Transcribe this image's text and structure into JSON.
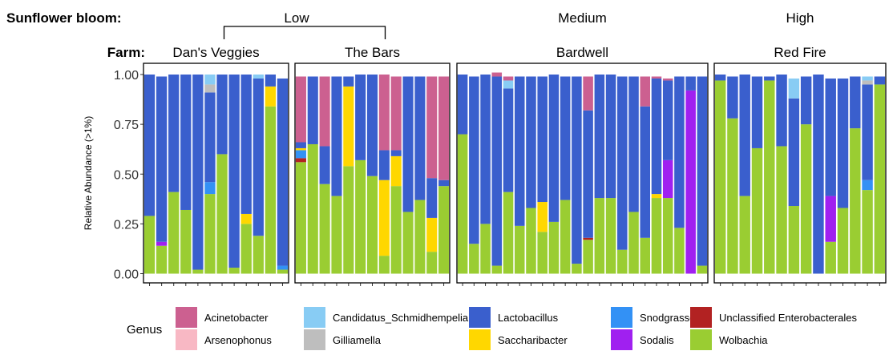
{
  "labels": {
    "bloom_label": "Sunflower bloom:",
    "farm_label": "Farm:",
    "ylabel": "Relative Abundance (>1%)",
    "legend_title": "Genus"
  },
  "bloom_groups": [
    {
      "name": "Low",
      "panels": [
        0,
        1
      ]
    },
    {
      "name": "Medium",
      "panels": [
        2
      ]
    },
    {
      "name": "High",
      "panels": [
        3
      ]
    }
  ],
  "genera": [
    {
      "name": "Acinetobacter",
      "color": "#CC6090"
    },
    {
      "name": "Arsenophonus",
      "color": "#F8B8C4"
    },
    {
      "name": "Candidatus_Schmidhempelia",
      "color": "#88CCF4"
    },
    {
      "name": "Gilliamella",
      "color": "#BEBEBE"
    },
    {
      "name": "Lactobacillus",
      "color": "#3A5FCD"
    },
    {
      "name": "Saccharibacter",
      "color": "#FFD700"
    },
    {
      "name": "Snodgrassella",
      "color": "#3391F5"
    },
    {
      "name": "Sodalis",
      "color": "#A020F0"
    },
    {
      "name": "Unclassified Enterobacterales",
      "color": "#B22222"
    },
    {
      "name": "Wolbachia",
      "color": "#9ACD32"
    }
  ],
  "chart_data": {
    "type": "bar",
    "stacked": true,
    "ylabel": "Relative Abundance (>1%)",
    "ylim": [
      0,
      1
    ],
    "yticks": [
      "0.00",
      "0.25",
      "0.50",
      "0.75",
      "1.00"
    ],
    "legend_position": "bottom",
    "panels": [
      {
        "farm": "Dan's Veggies",
        "bloom": "Low",
        "samples": [
          {
            "Wolbachia": 0.29,
            "Lactobacillus": 0.71
          },
          {
            "Wolbachia": 0.14,
            "Sodalis": 0.02,
            "Lactobacillus": 0.83
          },
          {
            "Wolbachia": 0.41,
            "Lactobacillus": 0.59
          },
          {
            "Wolbachia": 0.32,
            "Lactobacillus": 0.68
          },
          {
            "Wolbachia": 0.02,
            "Lactobacillus": 0.98
          },
          {
            "Wolbachia": 0.4,
            "Snodgrassella": 0.06,
            "Lactobacillus": 0.45,
            "Gilliamella": 0.04,
            "Candidatus_Schmidhempelia": 0.05
          },
          {
            "Wolbachia": 0.6,
            "Lactobacillus": 0.4
          },
          {
            "Wolbachia": 0.03,
            "Lactobacillus": 0.97
          },
          {
            "Wolbachia": 0.25,
            "Saccharibacter": 0.05,
            "Lactobacillus": 0.7
          },
          {
            "Wolbachia": 0.19,
            "Lactobacillus": 0.79,
            "Candidatus_Schmidhempelia": 0.02
          },
          {
            "Wolbachia": 0.84,
            "Saccharibacter": 0.1,
            "Lactobacillus": 0.06
          },
          {
            "Wolbachia": 0.02,
            "Snodgrassella": 0.02,
            "Lactobacillus": 0.94
          }
        ]
      },
      {
        "farm": "The Bars",
        "bloom": "Low",
        "samples": [
          {
            "Wolbachia": 0.56,
            "Unclassified Enterobacterales": 0.02,
            "Saccharibacter": 0.01,
            "Snodgrassella": 0.04,
            "Lactobacillus": 0.03,
            "Acinetobacter": 0.33
          },
          {
            "Wolbachia": 0.65,
            "Lactobacillus": 0.34
          },
          {
            "Wolbachia": 0.45,
            "Lactobacillus": 0.19,
            "Acinetobacter": 0.35
          },
          {
            "Wolbachia": 0.39,
            "Lactobacillus": 0.6
          },
          {
            "Wolbachia": 0.54,
            "Saccharibacter": 0.4,
            "Lactobacillus": 0.05
          },
          {
            "Wolbachia": 0.57,
            "Lactobacillus": 0.43
          },
          {
            "Wolbachia": 0.49,
            "Lactobacillus": 0.51
          },
          {
            "Wolbachia": 0.09,
            "Saccharibacter": 0.38,
            "Lactobacillus": 0.15,
            "Acinetobacter": 0.38
          },
          {
            "Wolbachia": 0.44,
            "Saccharibacter": 0.15,
            "Lactobacillus": 0.03,
            "Acinetobacter": 0.37
          },
          {
            "Wolbachia": 0.31,
            "Lactobacillus": 0.68
          },
          {
            "Wolbachia": 0.37,
            "Lactobacillus": 0.62
          },
          {
            "Wolbachia": 0.11,
            "Saccharibacter": 0.17,
            "Lactobacillus": 0.2,
            "Acinetobacter": 0.51
          },
          {
            "Wolbachia": 0.44,
            "Lactobacillus": 0.03,
            "Acinetobacter": 0.52
          }
        ]
      },
      {
        "farm": "Bardwell",
        "bloom": "Medium",
        "samples": [
          {
            "Wolbachia": 0.7,
            "Lactobacillus": 0.3
          },
          {
            "Wolbachia": 0.15,
            "Lactobacillus": 0.84
          },
          {
            "Wolbachia": 0.25,
            "Lactobacillus": 0.75
          },
          {
            "Wolbachia": 0.04,
            "Lactobacillus": 0.95,
            "Acinetobacter": 0.02
          },
          {
            "Wolbachia": 0.41,
            "Lactobacillus": 0.52,
            "Candidatus_Schmidhempelia": 0.04,
            "Acinetobacter": 0.02
          },
          {
            "Wolbachia": 0.24,
            "Lactobacillus": 0.75
          },
          {
            "Wolbachia": 0.33,
            "Lactobacillus": 0.66
          },
          {
            "Wolbachia": 0.21,
            "Saccharibacter": 0.15,
            "Lactobacillus": 0.63
          },
          {
            "Wolbachia": 0.26,
            "Lactobacillus": 0.74
          },
          {
            "Wolbachia": 0.37,
            "Lactobacillus": 0.62
          },
          {
            "Wolbachia": 0.05,
            "Lactobacillus": 0.94
          },
          {
            "Wolbachia": 0.17,
            "Unclassified Enterobacterales": 0.01,
            "Lactobacillus": 0.64,
            "Acinetobacter": 0.17
          },
          {
            "Wolbachia": 0.38,
            "Lactobacillus": 0.62
          },
          {
            "Wolbachia": 0.38,
            "Lactobacillus": 0.62
          },
          {
            "Wolbachia": 0.12,
            "Lactobacillus": 0.87
          },
          {
            "Wolbachia": 0.31,
            "Lactobacillus": 0.68
          },
          {
            "Wolbachia": 0.18,
            "Lactobacillus": 0.66,
            "Acinetobacter": 0.15
          },
          {
            "Wolbachia": 0.38,
            "Saccharibacter": 0.02,
            "Lactobacillus": 0.58,
            "Acinetobacter": 0.01
          },
          {
            "Wolbachia": 0.38,
            "Sodalis": 0.19,
            "Lactobacillus": 0.4,
            "Acinetobacter": 0.01
          },
          {
            "Wolbachia": 0.23,
            "Lactobacillus": 0.76
          },
          {
            "Sodalis": 0.92,
            "Lactobacillus": 0.07
          },
          {
            "Wolbachia": 0.04,
            "Lactobacillus": 0.95
          }
        ]
      },
      {
        "farm": "Red Fire",
        "bloom": "High",
        "samples": [
          {
            "Wolbachia": 0.97,
            "Lactobacillus": 0.03
          },
          {
            "Wolbachia": 0.78,
            "Lactobacillus": 0.21
          },
          {
            "Wolbachia": 0.39,
            "Lactobacillus": 0.61
          },
          {
            "Wolbachia": 0.63,
            "Lactobacillus": 0.36
          },
          {
            "Wolbachia": 0.97,
            "Lactobacillus": 0.02
          },
          {
            "Wolbachia": 0.64,
            "Lactobacillus": 0.36
          },
          {
            "Wolbachia": 0.34,
            "Lactobacillus": 0.54,
            "Candidatus_Schmidhempelia": 0.1
          },
          {
            "Wolbachia": 0.75,
            "Lactobacillus": 0.24
          },
          {
            "Lactobacillus": 1.0
          },
          {
            "Wolbachia": 0.16,
            "Sodalis": 0.23,
            "Lactobacillus": 0.59
          },
          {
            "Wolbachia": 0.33,
            "Lactobacillus": 0.65
          },
          {
            "Wolbachia": 0.73,
            "Lactobacillus": 0.26
          },
          {
            "Wolbachia": 0.42,
            "Snodgrassella": 0.05,
            "Lactobacillus": 0.48,
            "Gilliamella": 0.02,
            "Candidatus_Schmidhempelia": 0.02
          },
          {
            "Wolbachia": 0.95,
            "Lactobacillus": 0.04
          }
        ]
      }
    ]
  }
}
